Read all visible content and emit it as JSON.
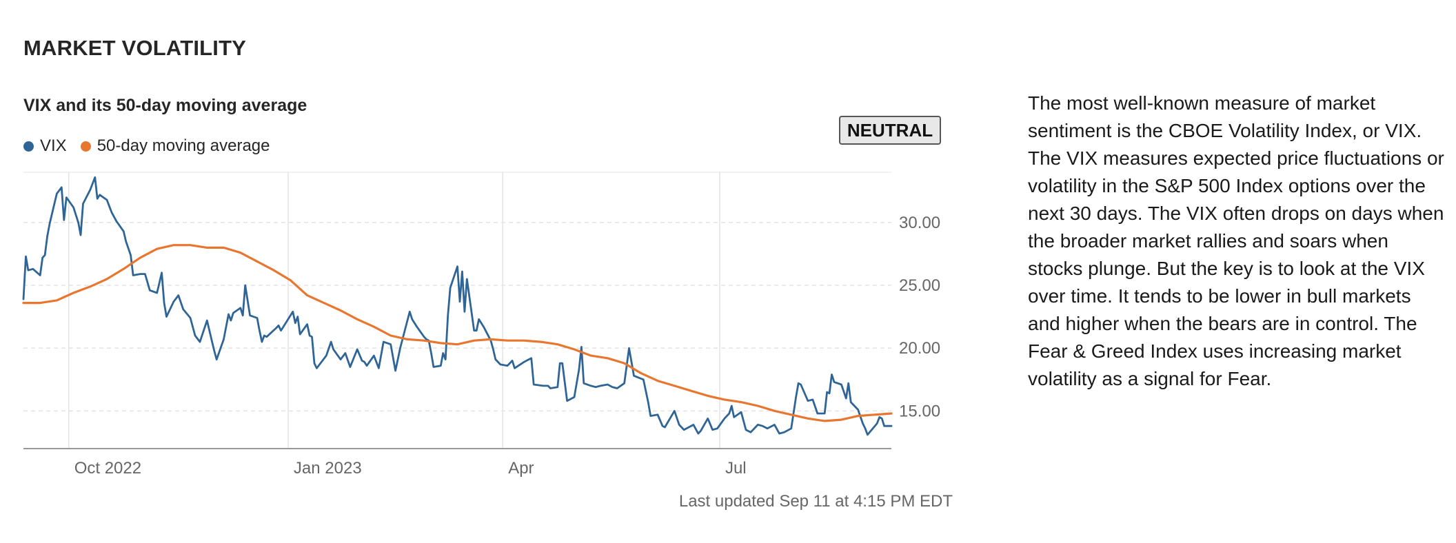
{
  "header": {
    "title": "MARKET VOLATILITY"
  },
  "status_badge": "NEUTRAL",
  "description": "The most well-known measure of market sentiment is the CBOE Volatility Index, or VIX. The VIX measures expected price fluctuations or volatility in the S&P 500 Index options over the next 30 days. The VIX often drops on days when the broader market rallies and soars when stocks plunge. But the key is to look at the VIX over time. It tends to be lower in bull markets and higher when the bears are in control. The Fear & Greed Index uses increasing market volatility as a signal for Fear.",
  "last_updated": "Last updated Sep 11 at 4:15 PM EDT",
  "colors": {
    "vix": "#2e6596",
    "moving_average": "#e8762f",
    "grid": "#e3e3e3",
    "badge_bg": "#e8e8e8"
  },
  "chart_data": {
    "type": "line",
    "title": "VIX and its 50-day moving average",
    "x_tick_labels": [
      "Oct 2022",
      "Jan 2023",
      "Apr",
      "Jul"
    ],
    "y_tick_labels": [
      "30.00",
      "25.00",
      "20.00",
      "15.00"
    ],
    "ylim": [
      12,
      34
    ],
    "xlim": [
      "2022-09-12",
      "2023-09-11"
    ],
    "legend_position": "top-left",
    "grid": true,
    "series": [
      {
        "name": "VIX",
        "color": "#2e6596",
        "points": [
          [
            "2022-09-12",
            23.9
          ],
          [
            "2022-09-13",
            27.3
          ],
          [
            "2022-09-14",
            26.2
          ],
          [
            "2022-09-16",
            26.3
          ],
          [
            "2022-09-19",
            25.8
          ],
          [
            "2022-09-20",
            27.2
          ],
          [
            "2022-09-21",
            27.4
          ],
          [
            "2022-09-22",
            28.9
          ],
          [
            "2022-09-23",
            29.9
          ],
          [
            "2022-09-26",
            32.3
          ],
          [
            "2022-09-28",
            32.8
          ],
          [
            "2022-09-29",
            30.2
          ],
          [
            "2022-09-30",
            32.0
          ],
          [
            "2022-10-03",
            31.2
          ],
          [
            "2022-10-05",
            30.0
          ],
          [
            "2022-10-06",
            29.0
          ],
          [
            "2022-10-07",
            31.5
          ],
          [
            "2022-10-10",
            32.6
          ],
          [
            "2022-10-12",
            33.6
          ],
          [
            "2022-10-13",
            31.9
          ],
          [
            "2022-10-14",
            32.2
          ],
          [
            "2022-10-17",
            31.8
          ],
          [
            "2022-10-18",
            31.3
          ],
          [
            "2022-10-19",
            30.8
          ],
          [
            "2022-10-21",
            30.1
          ],
          [
            "2022-10-24",
            29.3
          ],
          [
            "2022-10-25",
            28.5
          ],
          [
            "2022-10-27",
            27.4
          ],
          [
            "2022-10-28",
            25.8
          ],
          [
            "2022-10-31",
            25.9
          ],
          [
            "2022-11-02",
            25.9
          ],
          [
            "2022-11-04",
            24.6
          ],
          [
            "2022-11-07",
            24.4
          ],
          [
            "2022-11-08",
            25.2
          ],
          [
            "2022-11-09",
            26.0
          ],
          [
            "2022-11-10",
            23.6
          ],
          [
            "2022-11-11",
            22.5
          ],
          [
            "2022-11-14",
            23.7
          ],
          [
            "2022-11-16",
            24.2
          ],
          [
            "2022-11-18",
            23.1
          ],
          [
            "2022-11-21",
            22.4
          ],
          [
            "2022-11-23",
            21.0
          ],
          [
            "2022-11-25",
            20.5
          ],
          [
            "2022-11-28",
            22.2
          ],
          [
            "2022-11-30",
            20.6
          ],
          [
            "2022-12-01",
            19.8
          ],
          [
            "2022-12-02",
            19.1
          ],
          [
            "2022-12-05",
            20.7
          ],
          [
            "2022-12-07",
            22.7
          ],
          [
            "2022-12-08",
            22.2
          ],
          [
            "2022-12-09",
            22.8
          ],
          [
            "2022-12-12",
            23.2
          ],
          [
            "2022-12-13",
            22.6
          ],
          [
            "2022-12-14",
            25.0
          ],
          [
            "2022-12-16",
            22.6
          ],
          [
            "2022-12-19",
            22.4
          ],
          [
            "2022-12-20",
            21.4
          ],
          [
            "2022-12-21",
            20.5
          ],
          [
            "2022-12-22",
            21.0
          ],
          [
            "2022-12-23",
            20.9
          ],
          [
            "2022-12-27",
            21.6
          ],
          [
            "2022-12-28",
            21.8
          ],
          [
            "2022-12-29",
            21.4
          ],
          [
            "2022-12-30",
            21.7
          ],
          [
            "2023-01-03",
            22.9
          ],
          [
            "2023-01-04",
            22.0
          ],
          [
            "2023-01-05",
            22.5
          ],
          [
            "2023-01-06",
            21.1
          ],
          [
            "2023-01-09",
            21.9
          ],
          [
            "2023-01-10",
            21.0
          ],
          [
            "2023-01-11",
            20.9
          ],
          [
            "2023-01-12",
            18.8
          ],
          [
            "2023-01-13",
            18.4
          ],
          [
            "2023-01-17",
            19.4
          ],
          [
            "2023-01-19",
            20.5
          ],
          [
            "2023-01-20",
            19.9
          ],
          [
            "2023-01-23",
            19.1
          ],
          [
            "2023-01-25",
            19.6
          ],
          [
            "2023-01-27",
            18.5
          ],
          [
            "2023-01-30",
            19.9
          ],
          [
            "2023-02-01",
            19.0
          ],
          [
            "2023-02-02",
            18.9
          ],
          [
            "2023-02-03",
            18.6
          ],
          [
            "2023-02-06",
            19.4
          ],
          [
            "2023-02-08",
            18.4
          ],
          [
            "2023-02-10",
            20.5
          ],
          [
            "2023-02-13",
            20.3
          ],
          [
            "2023-02-15",
            18.2
          ],
          [
            "2023-02-17",
            20.0
          ],
          [
            "2023-02-21",
            22.9
          ],
          [
            "2023-02-22",
            22.3
          ],
          [
            "2023-02-24",
            21.7
          ],
          [
            "2023-02-27",
            20.9
          ],
          [
            "2023-02-28",
            20.7
          ],
          [
            "2023-03-01",
            20.6
          ],
          [
            "2023-03-02",
            19.6
          ],
          [
            "2023-03-03",
            18.5
          ],
          [
            "2023-03-06",
            18.6
          ],
          [
            "2023-03-07",
            19.6
          ],
          [
            "2023-03-08",
            19.1
          ],
          [
            "2023-03-09",
            22.6
          ],
          [
            "2023-03-10",
            24.8
          ],
          [
            "2023-03-13",
            26.5
          ],
          [
            "2023-03-14",
            23.7
          ],
          [
            "2023-03-15",
            26.1
          ],
          [
            "2023-03-16",
            22.9
          ],
          [
            "2023-03-17",
            25.5
          ],
          [
            "2023-03-20",
            21.4
          ],
          [
            "2023-03-21",
            21.4
          ],
          [
            "2023-03-22",
            22.3
          ],
          [
            "2023-03-24",
            21.7
          ],
          [
            "2023-03-27",
            20.6
          ],
          [
            "2023-03-28",
            19.9
          ],
          [
            "2023-03-29",
            19.1
          ],
          [
            "2023-03-31",
            18.7
          ],
          [
            "2023-04-03",
            18.6
          ],
          [
            "2023-04-05",
            19.0
          ],
          [
            "2023-04-06",
            18.4
          ],
          [
            "2023-04-10",
            18.9
          ],
          [
            "2023-04-13",
            19.2
          ],
          [
            "2023-04-14",
            17.1
          ],
          [
            "2023-04-18",
            17.0
          ],
          [
            "2023-04-20",
            17.0
          ],
          [
            "2023-04-21",
            16.8
          ],
          [
            "2023-04-24",
            16.9
          ],
          [
            "2023-04-25",
            18.8
          ],
          [
            "2023-04-26",
            18.8
          ],
          [
            "2023-04-28",
            15.8
          ],
          [
            "2023-05-01",
            16.1
          ],
          [
            "2023-05-03",
            18.3
          ],
          [
            "2023-05-04",
            20.1
          ],
          [
            "2023-05-05",
            17.2
          ],
          [
            "2023-05-08",
            17.0
          ],
          [
            "2023-05-10",
            16.9
          ],
          [
            "2023-05-12",
            17.0
          ],
          [
            "2023-05-15",
            17.1
          ],
          [
            "2023-05-17",
            16.9
          ],
          [
            "2023-05-19",
            16.8
          ],
          [
            "2023-05-22",
            17.2
          ],
          [
            "2023-05-24",
            20.0
          ],
          [
            "2023-05-26",
            17.8
          ],
          [
            "2023-05-30",
            17.5
          ],
          [
            "2023-06-01",
            15.7
          ],
          [
            "2023-06-02",
            14.6
          ],
          [
            "2023-06-05",
            14.7
          ],
          [
            "2023-06-07",
            13.8
          ],
          [
            "2023-06-08",
            13.7
          ],
          [
            "2023-06-12",
            15.0
          ],
          [
            "2023-06-14",
            13.9
          ],
          [
            "2023-06-16",
            13.5
          ],
          [
            "2023-06-20",
            13.9
          ],
          [
            "2023-06-22",
            13.2
          ],
          [
            "2023-06-23",
            13.4
          ],
          [
            "2023-06-26",
            14.4
          ],
          [
            "2023-06-28",
            13.5
          ],
          [
            "2023-06-30",
            13.6
          ],
          [
            "2023-07-03",
            14.4
          ],
          [
            "2023-07-05",
            14.8
          ],
          [
            "2023-07-06",
            15.4
          ],
          [
            "2023-07-07",
            14.5
          ],
          [
            "2023-07-10",
            14.9
          ],
          [
            "2023-07-12",
            13.5
          ],
          [
            "2023-07-14",
            13.3
          ],
          [
            "2023-07-17",
            13.9
          ],
          [
            "2023-07-19",
            13.8
          ],
          [
            "2023-07-21",
            13.6
          ],
          [
            "2023-07-24",
            13.9
          ],
          [
            "2023-07-26",
            13.2
          ],
          [
            "2023-07-28",
            13.3
          ],
          [
            "2023-07-31",
            13.6
          ],
          [
            "2023-08-02",
            16.1
          ],
          [
            "2023-08-03",
            17.2
          ],
          [
            "2023-08-04",
            17.1
          ],
          [
            "2023-08-07",
            15.8
          ],
          [
            "2023-08-09",
            15.9
          ],
          [
            "2023-08-11",
            14.8
          ],
          [
            "2023-08-14",
            14.8
          ],
          [
            "2023-08-15",
            16.5
          ],
          [
            "2023-08-16",
            16.4
          ],
          [
            "2023-08-17",
            17.9
          ],
          [
            "2023-08-18",
            17.3
          ],
          [
            "2023-08-21",
            17.1
          ],
          [
            "2023-08-23",
            16.0
          ],
          [
            "2023-08-24",
            17.2
          ],
          [
            "2023-08-25",
            15.7
          ],
          [
            "2023-08-28",
            15.1
          ],
          [
            "2023-08-30",
            14.0
          ],
          [
            "2023-08-31",
            13.6
          ],
          [
            "2023-09-01",
            13.1
          ],
          [
            "2023-09-05",
            14.0
          ],
          [
            "2023-09-06",
            14.5
          ],
          [
            "2023-09-07",
            14.4
          ],
          [
            "2023-09-08",
            13.8
          ],
          [
            "2023-09-11",
            13.8
          ]
        ]
      },
      {
        "name": "50-day moving average",
        "color": "#e8762f",
        "points": [
          [
            "2022-09-12",
            23.6
          ],
          [
            "2022-09-19",
            23.6
          ],
          [
            "2022-09-26",
            23.8
          ],
          [
            "2022-10-03",
            24.4
          ],
          [
            "2022-10-10",
            24.9
          ],
          [
            "2022-10-17",
            25.5
          ],
          [
            "2022-10-24",
            26.3
          ],
          [
            "2022-10-31",
            27.2
          ],
          [
            "2022-11-07",
            27.9
          ],
          [
            "2022-11-14",
            28.2
          ],
          [
            "2022-11-21",
            28.2
          ],
          [
            "2022-11-28",
            28.0
          ],
          [
            "2022-12-05",
            28.0
          ],
          [
            "2022-12-12",
            27.6
          ],
          [
            "2022-12-19",
            26.9
          ],
          [
            "2022-12-26",
            26.2
          ],
          [
            "2023-01-02",
            25.4
          ],
          [
            "2023-01-09",
            24.2
          ],
          [
            "2023-01-16",
            23.6
          ],
          [
            "2023-01-23",
            23.0
          ],
          [
            "2023-01-30",
            22.3
          ],
          [
            "2023-02-06",
            21.7
          ],
          [
            "2023-02-13",
            21.0
          ],
          [
            "2023-02-20",
            20.7
          ],
          [
            "2023-02-27",
            20.6
          ],
          [
            "2023-03-06",
            20.4
          ],
          [
            "2023-03-13",
            20.3
          ],
          [
            "2023-03-20",
            20.6
          ],
          [
            "2023-03-27",
            20.7
          ],
          [
            "2023-04-03",
            20.6
          ],
          [
            "2023-04-10",
            20.6
          ],
          [
            "2023-04-17",
            20.5
          ],
          [
            "2023-04-24",
            20.3
          ],
          [
            "2023-05-01",
            19.9
          ],
          [
            "2023-05-08",
            19.4
          ],
          [
            "2023-05-15",
            19.2
          ],
          [
            "2023-05-22",
            18.8
          ],
          [
            "2023-05-29",
            18.0
          ],
          [
            "2023-06-05",
            17.4
          ],
          [
            "2023-06-12",
            17.0
          ],
          [
            "2023-06-19",
            16.6
          ],
          [
            "2023-06-26",
            16.2
          ],
          [
            "2023-07-03",
            15.9
          ],
          [
            "2023-07-10",
            15.7
          ],
          [
            "2023-07-17",
            15.4
          ],
          [
            "2023-07-24",
            15.0
          ],
          [
            "2023-07-31",
            14.7
          ],
          [
            "2023-08-07",
            14.4
          ],
          [
            "2023-08-14",
            14.2
          ],
          [
            "2023-08-21",
            14.3
          ],
          [
            "2023-08-28",
            14.6
          ],
          [
            "2023-09-04",
            14.7
          ],
          [
            "2023-09-11",
            14.8
          ]
        ]
      }
    ]
  }
}
